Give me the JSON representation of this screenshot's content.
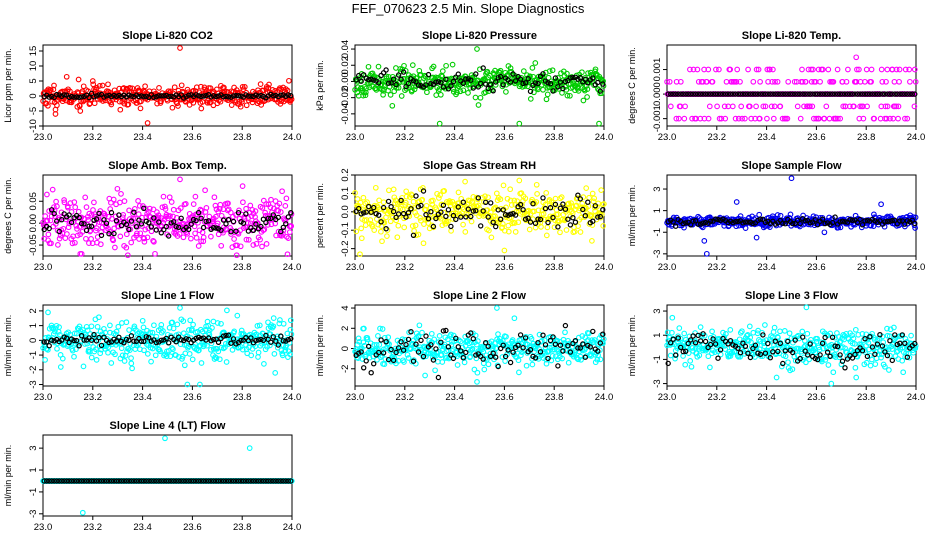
{
  "figure_title": "FEF_070623  2.5 Min. Slope Diagnostics",
  "chart_data": [
    {
      "type": "scatter",
      "title": "Slope Li-820 CO2",
      "ylabel": "Licor ppm per min.",
      "color": "#ff0000",
      "xlim": [
        23.0,
        24.0
      ],
      "ylim": [
        -10,
        17
      ],
      "yticks": [
        -10,
        -5,
        0,
        5,
        10,
        15
      ],
      "ytick_labels": [
        "-10",
        "-5",
        "0",
        "5",
        "10",
        "15"
      ],
      "xticks": [
        23.0,
        23.2,
        23.4,
        23.6,
        23.8,
        24.0
      ],
      "xtick_labels": [
        "23.0",
        "23.2",
        "23.4",
        "23.6",
        "23.8",
        "24.0"
      ],
      "spread": 1.8,
      "noise_seed": 11,
      "outliers": [
        [
          23.55,
          16
        ],
        [
          23.42,
          -9
        ],
        [
          23.05,
          -6
        ],
        [
          23.2,
          5
        ],
        [
          23.15,
          -5
        ]
      ],
      "black_spread": 0.3
    },
    {
      "type": "scatter",
      "title": "Slope Li-820 Pressure",
      "ylabel": "kPa per min.",
      "color": "#00cc00",
      "xlim": [
        23.0,
        24.0
      ],
      "ylim": [
        -0.055,
        0.045
      ],
      "yticks": [
        -0.04,
        -0.02,
        0.0,
        0.02,
        0.04
      ],
      "ytick_labels": [
        "-0.04",
        "-0.02",
        "0.00",
        "0.02",
        "0.04"
      ],
      "xticks": [
        23.0,
        23.2,
        23.4,
        23.6,
        23.8,
        24.0
      ],
      "xtick_labels": [
        "23.0",
        "23.2",
        "23.4",
        "23.6",
        "23.8",
        "24.0"
      ],
      "spread": 0.008,
      "noise_seed": 23,
      "outliers": [
        [
          23.49,
          0.04
        ],
        [
          23.34,
          -0.052
        ],
        [
          23.66,
          -0.052
        ],
        [
          23.98,
          -0.052
        ],
        [
          23.15,
          -0.03
        ]
      ],
      "black_spread": 0.006
    },
    {
      "type": "scatter",
      "title": "Slope Li-820 Temp.",
      "ylabel": "degrees C per min.",
      "color": "#ff00ff",
      "xlim": [
        23.0,
        24.0
      ],
      "ylim": [
        -0.0013,
        0.002
      ],
      "yticks": [
        -0.001,
        0.0,
        0.001
      ],
      "ytick_labels": [
        "-0.001",
        "0.000",
        "0.001"
      ],
      "xticks": [
        23.0,
        23.2,
        23.4,
        23.6,
        23.8,
        24.0
      ],
      "xtick_labels": [
        "23.0",
        "23.2",
        "23.4",
        "23.6",
        "23.8",
        "24.0"
      ],
      "spread": 0,
      "noise_seed": 37,
      "quantized": [
        0.0005,
        -0.0005,
        0.001,
        -0.001
      ],
      "outliers": [
        [
          23.76,
          0.0015
        ]
      ],
      "black_spread": 0
    },
    {
      "type": "scatter",
      "title": "Slope Amb. Box Temp.",
      "ylabel": "degrees C per min.",
      "color": "#ff00ff",
      "xlim": [
        23.0,
        24.0
      ],
      "ylim": [
        -0.075,
        0.11
      ],
      "yticks": [
        -0.05,
        0.0,
        0.05
      ],
      "ytick_labels": [
        "-0.05",
        "0.00",
        "0.05"
      ],
      "xticks": [
        23.0,
        23.2,
        23.4,
        23.6,
        23.8,
        24.0
      ],
      "xtick_labels": [
        "23.0",
        "23.2",
        "23.4",
        "23.6",
        "23.8",
        "24.0"
      ],
      "spread": 0.03,
      "noise_seed": 41,
      "outliers": [
        [
          23.55,
          0.1
        ],
        [
          23.15,
          -0.07
        ],
        [
          23.45,
          -0.07
        ]
      ],
      "black_spread": 0.015
    },
    {
      "type": "scatter",
      "title": "Slope Gas Stream RH",
      "ylabel": "percent per min.",
      "color": "#ffff00",
      "xlim": [
        23.0,
        24.0
      ],
      "ylim": [
        -0.24,
        0.2
      ],
      "yticks": [
        -0.2,
        -0.1,
        0.0,
        0.1,
        0.2
      ],
      "ytick_labels": [
        "-0.2",
        "-0.1",
        "0.0",
        "0.1",
        "0.2"
      ],
      "xticks": [
        23.0,
        23.2,
        23.4,
        23.6,
        23.8,
        24.0
      ],
      "xtick_labels": [
        "23.0",
        "23.2",
        "23.4",
        "23.6",
        "23.8",
        "24.0"
      ],
      "spread": 0.06,
      "noise_seed": 53,
      "outliers": [
        [
          23.02,
          -0.23
        ],
        [
          23.66,
          0.17
        ],
        [
          23.6,
          -0.21
        ]
      ],
      "black_spread": 0.05
    },
    {
      "type": "scatter",
      "title": "Slope Sample Flow",
      "ylabel": "ml/min per min.",
      "color": "#0000ee",
      "xlim": [
        23.0,
        24.0
      ],
      "ylim": [
        -3.2,
        4.3
      ],
      "yticks": [
        -3,
        -1,
        1,
        3
      ],
      "ytick_labels": [
        "-3",
        "-1",
        "1",
        "3"
      ],
      "xticks": [
        23.0,
        23.2,
        23.4,
        23.6,
        23.8,
        24.0
      ],
      "xtick_labels": [
        "23.0",
        "23.2",
        "23.4",
        "23.6",
        "23.8",
        "24.0"
      ],
      "spread": 0.25,
      "noise_seed": 61,
      "outliers": [
        [
          23.5,
          4
        ],
        [
          23.16,
          -3
        ],
        [
          23.28,
          1.8
        ],
        [
          23.86,
          1.6
        ],
        [
          23.36,
          -1.5
        ],
        [
          23.15,
          -1.8
        ]
      ],
      "black_spread": 0.15
    },
    {
      "type": "scatter",
      "title": "Slope Line 1 Flow",
      "ylabel": "ml/min per min.",
      "color": "#00ffff",
      "xlim": [
        23.0,
        24.0
      ],
      "ylim": [
        -3.1,
        2.4
      ],
      "yticks": [
        -3,
        -2,
        -1,
        0,
        1,
        2
      ],
      "ytick_labels": [
        "-3",
        "-2",
        "-1",
        "0",
        "1",
        "2"
      ],
      "xticks": [
        23.0,
        23.2,
        23.4,
        23.6,
        23.8,
        24.0
      ],
      "xtick_labels": [
        "23.0",
        "23.2",
        "23.4",
        "23.6",
        "23.8",
        "24.0"
      ],
      "spread": 0.7,
      "noise_seed": 71,
      "outliers": [
        [
          23.55,
          2.2
        ],
        [
          23.58,
          -3
        ],
        [
          23.63,
          -3
        ],
        [
          23.02,
          1.9
        ]
      ],
      "black_spread": 0.15
    },
    {
      "type": "scatter",
      "title": "Slope Line 2 Flow",
      "ylabel": "ml/min per min.",
      "color": "#00ffff",
      "xlim": [
        23.0,
        24.0
      ],
      "ylim": [
        -3.7,
        4.3
      ],
      "yticks": [
        -2,
        0,
        2,
        4
      ],
      "ytick_labels": [
        "-2",
        "0",
        "2",
        "4"
      ],
      "xticks": [
        23.0,
        23.2,
        23.4,
        23.6,
        23.8,
        24.0
      ],
      "xtick_labels": [
        "23.0",
        "23.2",
        "23.4",
        "23.6",
        "23.8",
        "24.0"
      ],
      "spread": 0.8,
      "noise_seed": 83,
      "outliers": [
        [
          23.57,
          4
        ],
        [
          23.64,
          3
        ],
        [
          23.49,
          -3.3
        ]
      ],
      "black_spread": 0.9
    },
    {
      "type": "scatter",
      "title": "Slope Line 3 Flow",
      "ylabel": "ml/min per min.",
      "color": "#00ffff",
      "xlim": [
        23.0,
        24.0
      ],
      "ylim": [
        -3.2,
        3.5
      ],
      "yticks": [
        -3,
        -1,
        1,
        3
      ],
      "ytick_labels": [
        "-3",
        "-1",
        "1",
        "3"
      ],
      "xticks": [
        23.0,
        23.2,
        23.4,
        23.6,
        23.8,
        24.0
      ],
      "xtick_labels": [
        "23.0",
        "23.2",
        "23.4",
        "23.6",
        "23.8",
        "24.0"
      ],
      "spread": 0.8,
      "noise_seed": 97,
      "outliers": [
        [
          23.56,
          3.3
        ],
        [
          23.66,
          -3
        ],
        [
          23.44,
          -2.5
        ],
        [
          23.76,
          -2.5
        ]
      ],
      "black_spread": 0.7
    },
    {
      "type": "scatter",
      "title": "Slope Line 4 (LT) Flow",
      "ylabel": "ml/min per min.",
      "color": "#00ffff",
      "xlim": [
        23.0,
        24.0
      ],
      "ylim": [
        -3.2,
        4.2
      ],
      "yticks": [
        -3,
        -1,
        1,
        3
      ],
      "ytick_labels": [
        "-3",
        "-1",
        "1",
        "3"
      ],
      "xticks": [
        23.0,
        23.2,
        23.4,
        23.6,
        23.8,
        24.0
      ],
      "xtick_labels": [
        "23.0",
        "23.2",
        "23.4",
        "23.6",
        "23.8",
        "24.0"
      ],
      "spread": 0,
      "noise_seed": 101,
      "outliers": [
        [
          23.49,
          3.9
        ],
        [
          23.83,
          3
        ],
        [
          23.16,
          -2.9
        ]
      ],
      "black_spread": 0
    }
  ]
}
